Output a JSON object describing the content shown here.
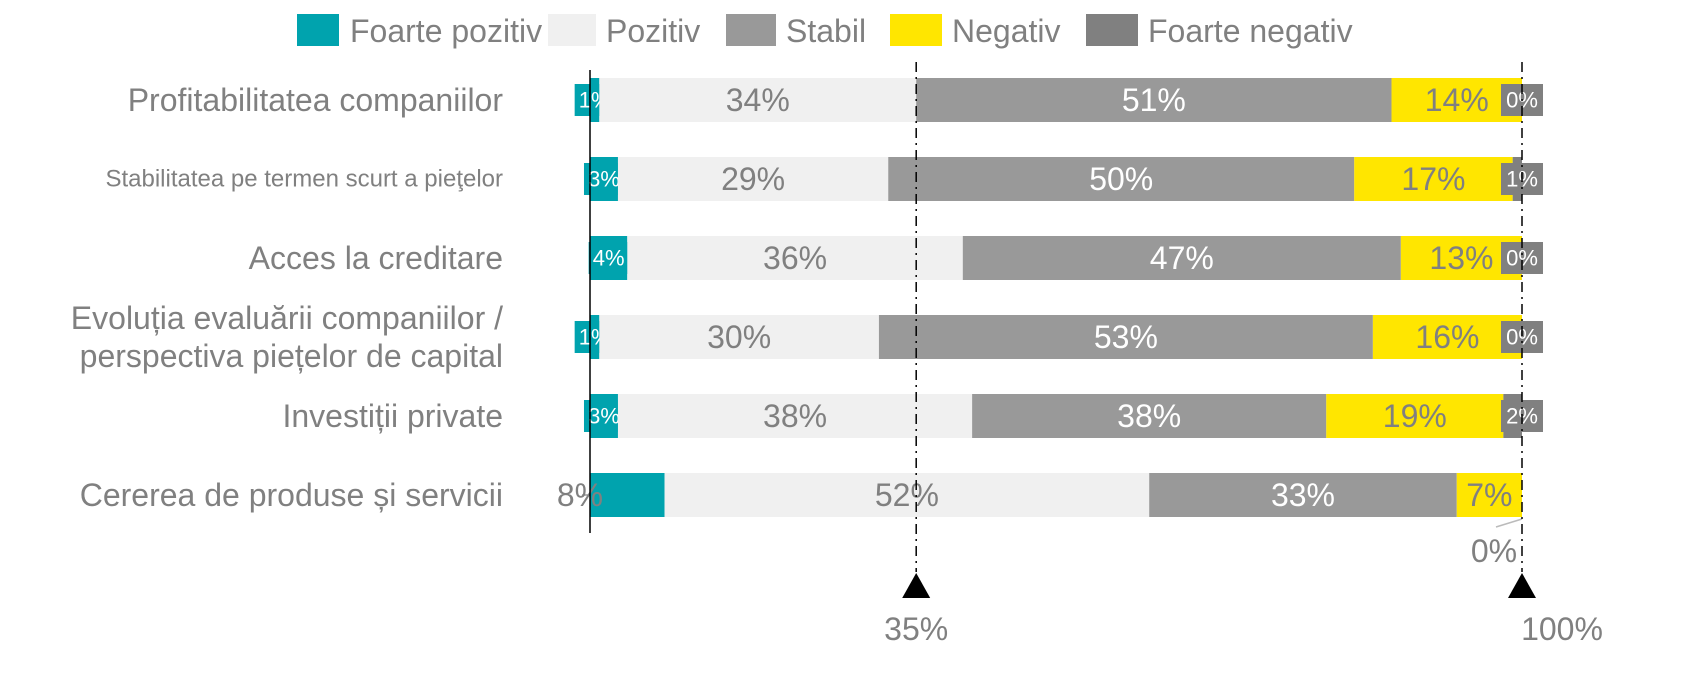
{
  "colors": {
    "Foarte pozitiv": "#00A3AE",
    "Pozitiv": "#F0F0F0",
    "Stabil": "#999999",
    "Negativ": "#FFE600",
    "Foarte negativ": "#808080"
  },
  "chart_data": {
    "type": "bar",
    "orientation": "horizontal",
    "stacked": true,
    "legend_placement": "top",
    "categories": [
      "Profitabilitatea companiilor",
      "Stabilitatea pe termen scurt a pieţelor",
      "Acces la creditare",
      "Evoluția evaluării companiilor / perspectiva piețelor de capital",
      "Investiții private",
      "Cererea de produse și servicii"
    ],
    "category_lines": [
      [
        "Profitabilitatea companiilor"
      ],
      [
        "Stabilitatea pe termen scurt a pieţelor"
      ],
      [
        "Acces la creditare"
      ],
      [
        "Evoluția evaluării companiilor /",
        "perspectiva piețelor de capital"
      ],
      [
        "Investiții private"
      ],
      [
        "Cererea de produse și servicii"
      ]
    ],
    "series": [
      {
        "name": "Foarte pozitiv",
        "values": [
          1,
          3,
          4,
          1,
          3,
          8
        ],
        "labels": [
          "1%",
          "3%",
          "4%",
          "1%",
          "3%",
          "8%"
        ]
      },
      {
        "name": "Pozitiv",
        "values": [
          34,
          29,
          36,
          30,
          38,
          52
        ],
        "labels": [
          "34%",
          "29%",
          "36%",
          "30%",
          "38%",
          "52%"
        ]
      },
      {
        "name": "Stabil",
        "values": [
          51,
          50,
          47,
          53,
          38,
          33
        ],
        "labels": [
          "51%",
          "50%",
          "47%",
          "53%",
          "38%",
          "33%"
        ]
      },
      {
        "name": "Negativ",
        "values": [
          14,
          17,
          13,
          16,
          19,
          7
        ],
        "labels": [
          "14%",
          "17%",
          "13%",
          "16%",
          "19%",
          "7%"
        ]
      },
      {
        "name": "Foarte negativ",
        "values": [
          0,
          1,
          0,
          0,
          2,
          0
        ],
        "labels": [
          "0%",
          "1%",
          "0%",
          "0%",
          "2%",
          "0%"
        ]
      }
    ],
    "xlim": [
      0,
      100
    ],
    "reference_lines": [
      {
        "value": 35,
        "label": "35%"
      },
      {
        "value": 100,
        "label": "100%"
      }
    ]
  }
}
